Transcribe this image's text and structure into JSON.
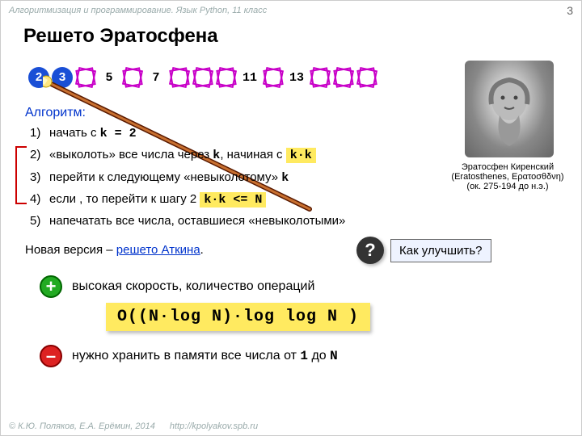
{
  "header": {
    "course": "Алгоритмизация и программирование. Язык Python, 11 класс",
    "page": "3"
  },
  "title": "Решето Эратосфена",
  "sieve": {
    "cells": [
      {
        "n": "2",
        "kind": "prime"
      },
      {
        "n": "3",
        "kind": "prime"
      },
      {
        "n": "",
        "kind": "crossed"
      },
      {
        "n": "5",
        "kind": "open"
      },
      {
        "n": "",
        "kind": "crossed"
      },
      {
        "n": "7",
        "kind": "open"
      },
      {
        "n": "",
        "kind": "crossed"
      },
      {
        "n": "",
        "kind": "crossed"
      },
      {
        "n": "",
        "kind": "crossed"
      },
      {
        "n": "11",
        "kind": "open"
      },
      {
        "n": "",
        "kind": "crossed"
      },
      {
        "n": "13",
        "kind": "open"
      },
      {
        "n": "",
        "kind": "crossed"
      },
      {
        "n": "",
        "kind": "crossed"
      },
      {
        "n": "",
        "kind": "crossed"
      }
    ],
    "crossed_stroke": "#c800c8"
  },
  "portrait": {
    "name": "Эратосфен Киренский",
    "latin": "(Eratosthenes, Ερατοσθδνη)",
    "dates": "(ок. 275-194 до н.э.)"
  },
  "algorithm": {
    "label": "Алгоритм:",
    "steps": [
      {
        "n": "1)",
        "pre": "начать с ",
        "mono": "k = 2",
        "post": ""
      },
      {
        "n": "2)",
        "pre": "«выколоть» все числа через ",
        "mono": "k",
        "post": ", начиная с ",
        "hl": "k·k"
      },
      {
        "n": "3)",
        "pre": "перейти к следующему «невыколотому» ",
        "mono": "k",
        "post": ""
      },
      {
        "n": "4)",
        "pre": "если ",
        "hl": "k·k <= N",
        "post": " , то перейти к шагу 2"
      },
      {
        "n": "5)",
        "pre": "напечатать все числа, оставшиеся «невыколотыми»"
      }
    ]
  },
  "atkin": {
    "prefix": "Новая версия – ",
    "link": "решето Аткина",
    "suffix": "."
  },
  "question": {
    "text": "Как улучшить?"
  },
  "pros": {
    "text": "высокая скорость, количество операций"
  },
  "complexity": "O((N·log N)·log log N )",
  "cons": {
    "pre": "нужно хранить в памяти все числа от ",
    "from": "1",
    "mid": " до ",
    "to": "N"
  },
  "footer": {
    "authors": "© К.Ю. Поляков, Е.А. Ерёмин, 2014",
    "url": "http://kpolyakov.spb.ru"
  },
  "colors": {
    "accent": "#0033cc",
    "hl": "#ffea60",
    "loop": "#c00000"
  }
}
